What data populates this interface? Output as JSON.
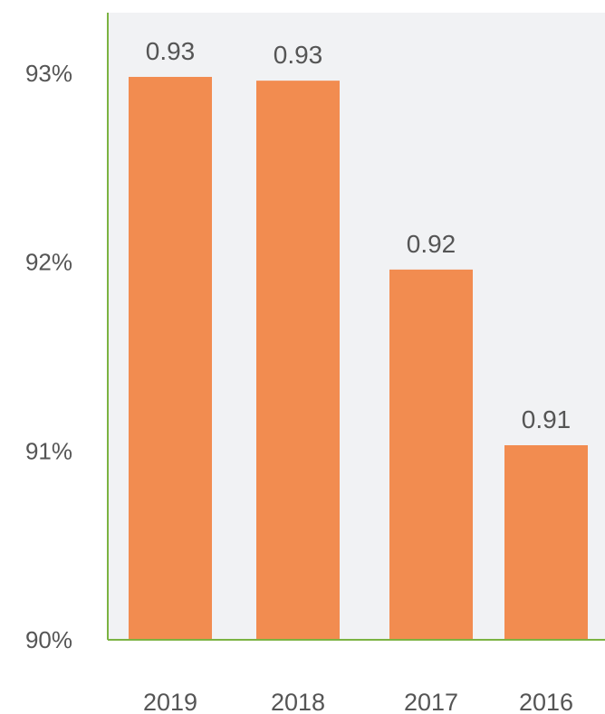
{
  "chart_data": {
    "type": "bar",
    "categories": [
      "2019",
      "2018",
      "2017",
      "2016"
    ],
    "values": [
      0.9298,
      0.9296,
      0.9196,
      0.9103
    ],
    "data_labels": [
      "0.93",
      "0.93",
      "0.92",
      "0.91"
    ],
    "y_ticks": [
      0.9,
      0.91,
      0.92,
      0.93
    ],
    "y_tick_labels": [
      "90%",
      "91%",
      "92%",
      "93%"
    ],
    "ylim": [
      0.9,
      0.9332
    ],
    "xlabel": "",
    "ylabel": "",
    "title": "",
    "grid": false,
    "legend": "none",
    "colors": {
      "bar": "#F28C50",
      "plot_background": "#F1F2F4",
      "axis": "#7CB342",
      "text": "#555555"
    }
  }
}
